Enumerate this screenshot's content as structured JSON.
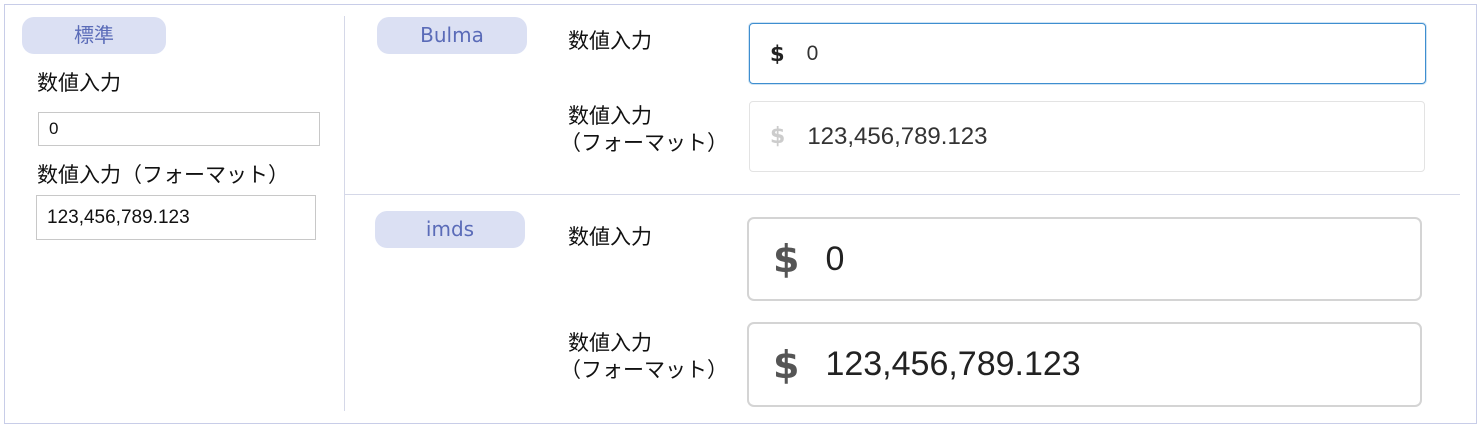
{
  "standard": {
    "badge": "標準",
    "label1": "数値入力",
    "value1": "0",
    "label2": "数値入力（フォーマット）",
    "value2": "123,456,789.123"
  },
  "bulma": {
    "badge": "Bulma",
    "label1": "数値入力",
    "value1": "0",
    "label2_line1": "数値入力",
    "label2_line2": "（フォーマット）",
    "value2": "123,456,789.123",
    "prefix": "$"
  },
  "imds": {
    "badge": "imds",
    "label1": "数値入力",
    "value1": "0",
    "label2_line1": "数値入力",
    "label2_line2": "（フォーマット）",
    "value2": "123,456,789.123",
    "prefix": "$"
  },
  "colors": {
    "badge_bg": "#dbe0f3",
    "badge_text": "#5a6bb8",
    "focus_border": "#3e8ed0"
  }
}
